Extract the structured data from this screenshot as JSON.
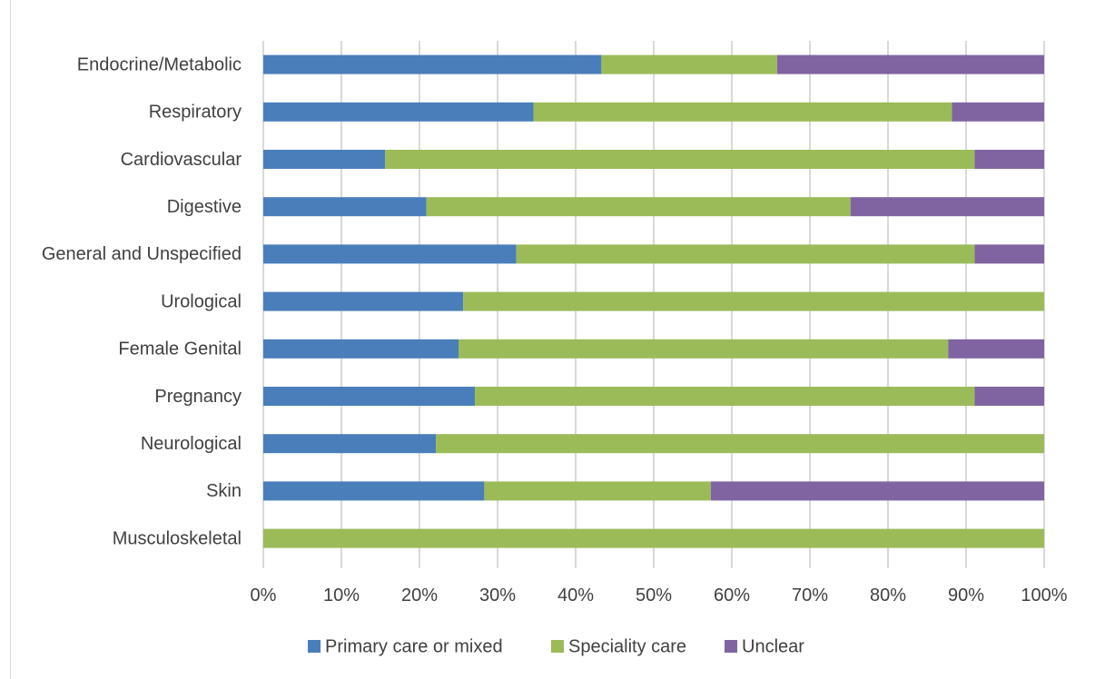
{
  "chart_data": {
    "type": "bar",
    "orientation": "horizontal",
    "stacked": "percent",
    "categories": [
      "Endocrine/Metabolic",
      "Respiratory",
      "Cardiovascular",
      "Digestive",
      "General and Unspecified",
      "Urological",
      "Female  Genital",
      "Pregnancy",
      "Neurological",
      "Skin",
      "Musculoskeletal"
    ],
    "series": [
      {
        "name": "Primary care or mixed",
        "color": "#4a7ebb",
        "values": [
          43.3,
          34.6,
          15.6,
          20.9,
          32.4,
          25.6,
          25.0,
          27.1,
          22.1,
          28.3,
          0
        ]
      },
      {
        "name": "Speciality care",
        "color": "#9bbb59",
        "values": [
          22.5,
          53.6,
          75.5,
          54.3,
          58.7,
          74.4,
          62.7,
          64.0,
          77.9,
          29.0,
          100
        ]
      },
      {
        "name": "Unclear",
        "color": "#8064a2",
        "values": [
          34.2,
          11.8,
          8.9,
          24.8,
          8.9,
          0,
          12.3,
          8.9,
          0,
          42.7,
          0
        ]
      }
    ],
    "xaxis": {
      "ticks": [
        "0%",
        "10%",
        "20%",
        "30%",
        "40%",
        "50%",
        "60%",
        "70%",
        "80%",
        "90%",
        "100%"
      ],
      "range": [
        0,
        100
      ]
    },
    "grid": true,
    "legend_position": "bottom"
  }
}
